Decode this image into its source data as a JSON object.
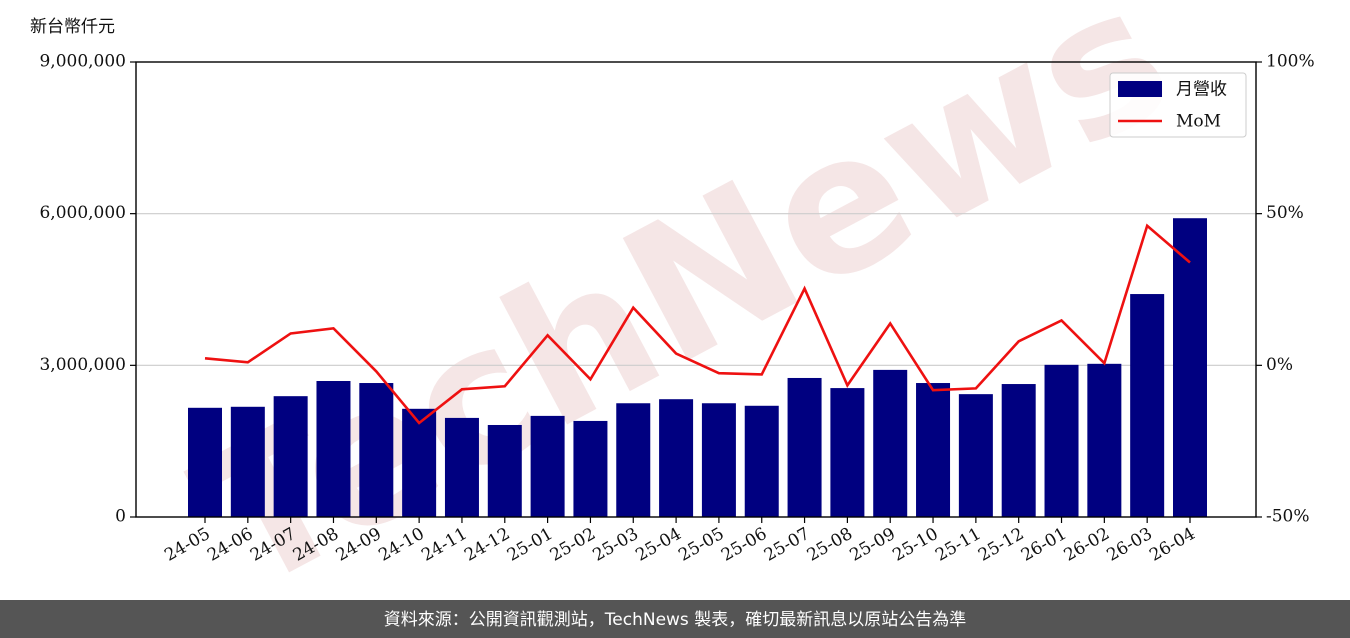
{
  "chart_data": {
    "type": "bar_line",
    "y_label": "新台幣仟元",
    "watermark": "TechNews",
    "footer": "資料來源：公開資訊觀測站，TechNews 製表，確切最新訊息以原站公告為準",
    "categories": [
      "24-05",
      "24-06",
      "24-07",
      "24-08",
      "24-09",
      "24-10",
      "24-11",
      "24-12",
      "25-01",
      "25-02",
      "25-03",
      "25-04",
      "25-05",
      "25-06",
      "25-07",
      "25-08",
      "25-09",
      "25-10",
      "25-11",
      "25-12",
      "26-01",
      "26-02",
      "26-03",
      "26-04"
    ],
    "series": [
      {
        "name": "月營收",
        "type": "bar",
        "color": "#000080",
        "values": [
          2160000,
          2180000,
          2390000,
          2690000,
          2650000,
          2140000,
          1960000,
          1820000,
          2000000,
          1900000,
          2250000,
          2330000,
          2250000,
          2200000,
          2750000,
          2550000,
          2910000,
          2650000,
          2430000,
          2630000,
          3010000,
          3030000,
          4410000,
          5910000
        ]
      },
      {
        "name": "MoM",
        "type": "line",
        "axis": "y2",
        "color": "#ee1111",
        "values": [
          2.3,
          1.0,
          10.5,
          12.2,
          -2.0,
          -19.0,
          -7.9,
          -6.9,
          9.9,
          -4.6,
          19.0,
          3.9,
          -2.6,
          -3.0,
          25.3,
          -6.6,
          13.8,
          -8.2,
          -7.6,
          7.9,
          14.8,
          0.7,
          46.0,
          33.9
        ]
      }
    ],
    "ylim": [
      0,
      9000000
    ],
    "yticks": [
      0,
      {
        "value": 3000000,
        "label": "3,000,000"
      },
      {
        "value": 6000000,
        "label": "6,000,000"
      },
      {
        "value": 9000000,
        "label": "9,000,000"
      }
    ],
    "y2lim": [
      -50,
      100
    ],
    "y2ticks": [
      {
        "value": -50,
        "label": "-50%"
      },
      {
        "value": 0,
        "label": "0%"
      },
      {
        "value": 50,
        "label": "50%"
      },
      {
        "value": 100,
        "label": "100%"
      }
    ],
    "grid": true,
    "legend": "upper right"
  }
}
